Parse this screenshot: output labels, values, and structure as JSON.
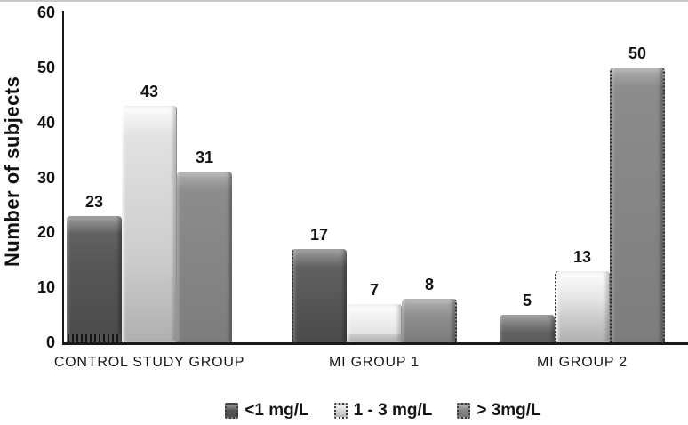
{
  "chart_data": {
    "type": "bar",
    "title": "",
    "xlabel": "",
    "ylabel": "Number of subjects",
    "ylim": [
      0,
      60
    ],
    "yticks": [
      0,
      10,
      20,
      30,
      40,
      50,
      60
    ],
    "grid": false,
    "legend_position": "bottom",
    "data_labels": true,
    "categories": [
      "CONTROL STUDY GROUP",
      "MI GROUP 1",
      "MI GROUP 2"
    ],
    "series": [
      {
        "name": "<1 mg/L",
        "values": [
          23,
          17,
          5
        ],
        "color": "#565656"
      },
      {
        "name": "1 - 3 mg/L",
        "values": [
          43,
          7,
          13
        ],
        "color": "#d6d6d6"
      },
      {
        "name": "> 3mg/L",
        "values": [
          31,
          8,
          50
        ],
        "color": "#868686"
      }
    ]
  },
  "colors": {
    "axis": "#1a1a1a",
    "text": "#141414",
    "background": "#ffffff"
  }
}
